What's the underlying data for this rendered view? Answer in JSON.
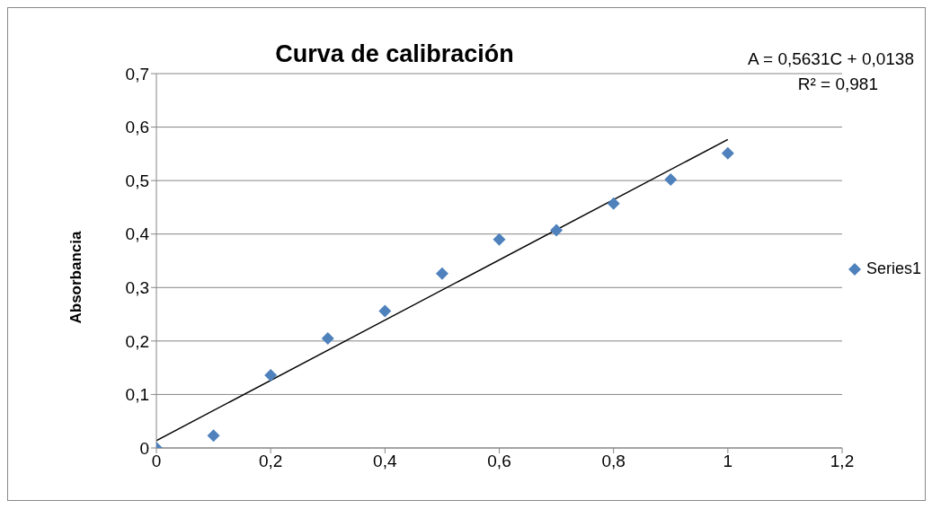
{
  "chart_data": {
    "type": "scatter",
    "title": "Curva de calibración",
    "ylabel": "Absorbancia",
    "annotations": [
      "A = 0,5631C + 0,0138",
      "R² = 0,981"
    ],
    "x": [
      0,
      0.1,
      0.2,
      0.3,
      0.4,
      0.5,
      0.6,
      0.7,
      0.8,
      0.9,
      1.0
    ],
    "series": [
      {
        "name": "Series1",
        "color": "#4f81bd",
        "values": [
          0,
          0.023,
          0.136,
          0.205,
          0.256,
          0.326,
          0.39,
          0.407,
          0.457,
          0.502,
          0.551
        ]
      },
      {
        "type": "line",
        "color": "#000000",
        "x": [
          0,
          1
        ],
        "values": [
          0.0138,
          0.5769
        ],
        "line_style": "solid",
        "marker": "none"
      }
    ],
    "xlim": [
      0,
      1.2
    ],
    "xticks": [
      0,
      {
        "value": 0.2,
        "label": "0,2"
      },
      {
        "value": 0.4,
        "label": "0,4"
      },
      {
        "value": 0.6,
        "label": "0,6"
      },
      {
        "value": 0.8,
        "label": "0,8"
      },
      1,
      {
        "value": 1.2,
        "label": "1,2"
      }
    ],
    "ylim": [
      0,
      0.7
    ],
    "yticks": [
      0,
      {
        "value": 0.1,
        "label": "0,1"
      },
      {
        "value": 0.2,
        "label": "0,2"
      },
      {
        "value": 0.3,
        "label": "0,3"
      },
      {
        "value": 0.4,
        "label": "0,4"
      },
      {
        "value": 0.5,
        "label": "0,5"
      },
      {
        "value": 0.6,
        "label": "0,6"
      },
      {
        "value": 0.7,
        "label": "0,7"
      }
    ],
    "grid": "y",
    "legend": "right",
    "marker": "diamond"
  }
}
